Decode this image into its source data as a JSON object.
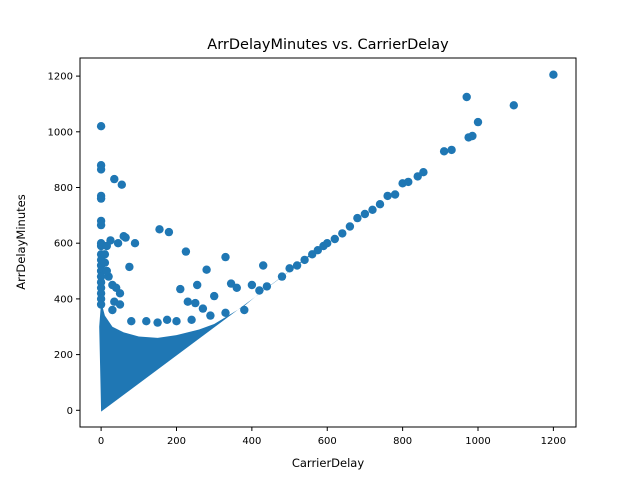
{
  "chart_data": {
    "type": "scatter",
    "title": "ArrDelayMinutes vs. CarrierDelay",
    "xlabel": "CarrierDelay",
    "ylabel": "ArrDelayMinutes",
    "xlim": [
      -56,
      1260
    ],
    "ylim": [
      -60,
      1265
    ],
    "xticks": [
      0,
      200,
      400,
      600,
      800,
      1000,
      1200
    ],
    "yticks": [
      0,
      200,
      400,
      600,
      800,
      1000,
      1200
    ],
    "grid": false,
    "marker_color": "#1f77b4",
    "series": [
      {
        "name": "ArrDelayMinutes",
        "points": [
          [
            0,
            1020
          ],
          [
            0,
            880
          ],
          [
            0,
            865
          ],
          [
            0,
            770
          ],
          [
            0,
            760
          ],
          [
            0,
            680
          ],
          [
            0,
            665
          ],
          [
            0,
            600
          ],
          [
            0,
            590
          ],
          [
            0,
            560
          ],
          [
            0,
            540
          ],
          [
            0,
            520
          ],
          [
            0,
            500
          ],
          [
            0,
            480
          ],
          [
            0,
            460
          ],
          [
            0,
            440
          ],
          [
            0,
            420
          ],
          [
            0,
            400
          ],
          [
            0,
            380
          ],
          [
            10,
            560
          ],
          [
            15,
            590
          ],
          [
            25,
            610
          ],
          [
            35,
            830
          ],
          [
            45,
            600
          ],
          [
            55,
            810
          ],
          [
            60,
            625
          ],
          [
            65,
            620
          ],
          [
            75,
            515
          ],
          [
            90,
            600
          ],
          [
            20,
            480
          ],
          [
            30,
            450
          ],
          [
            40,
            440
          ],
          [
            50,
            420
          ],
          [
            35,
            390
          ],
          [
            50,
            380
          ],
          [
            30,
            360
          ],
          [
            15,
            500
          ],
          [
            10,
            530
          ],
          [
            155,
            650
          ],
          [
            180,
            640
          ],
          [
            210,
            435
          ],
          [
            225,
            570
          ],
          [
            230,
            390
          ],
          [
            250,
            385
          ],
          [
            255,
            450
          ],
          [
            280,
            505
          ],
          [
            300,
            410
          ],
          [
            330,
            550
          ],
          [
            345,
            455
          ],
          [
            360,
            440
          ],
          [
            430,
            520
          ],
          [
            400,
            450
          ],
          [
            270,
            365
          ],
          [
            80,
            320
          ],
          [
            120,
            320
          ],
          [
            150,
            315
          ],
          [
            175,
            325
          ],
          [
            200,
            320
          ],
          [
            240,
            325
          ],
          [
            290,
            340
          ],
          [
            330,
            350
          ],
          [
            380,
            360
          ],
          [
            420,
            430
          ],
          [
            440,
            445
          ],
          [
            480,
            480
          ],
          [
            500,
            510
          ],
          [
            520,
            520
          ],
          [
            540,
            540
          ],
          [
            560,
            560
          ],
          [
            575,
            575
          ],
          [
            590,
            590
          ],
          [
            600,
            600
          ],
          [
            620,
            615
          ],
          [
            640,
            635
          ],
          [
            660,
            660
          ],
          [
            680,
            690
          ],
          [
            700,
            705
          ],
          [
            720,
            720
          ],
          [
            740,
            740
          ],
          [
            760,
            770
          ],
          [
            780,
            775
          ],
          [
            800,
            815
          ],
          [
            815,
            820
          ],
          [
            840,
            840
          ],
          [
            855,
            855
          ],
          [
            910,
            930
          ],
          [
            930,
            935
          ],
          [
            975,
            980
          ],
          [
            985,
            985
          ],
          [
            970,
            1125
          ],
          [
            1000,
            1035
          ],
          [
            1095,
            1095
          ],
          [
            1200,
            1205
          ]
        ]
      }
    ]
  }
}
